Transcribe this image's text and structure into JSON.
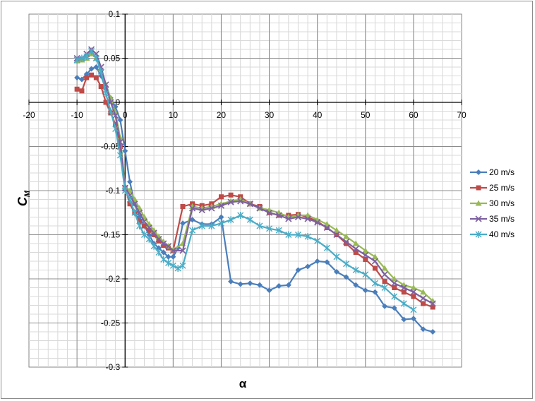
{
  "chart_data": {
    "type": "line",
    "title": "",
    "xlabel": "α",
    "ylabel": "C",
    "ylabel_sub": "M",
    "xlim": [
      -20,
      70
    ],
    "ylim": [
      -0.3,
      0.1
    ],
    "x_major_step": 10,
    "y_major_step": 0.05,
    "x_minor_step": 2,
    "y_minor_step": 0.01,
    "x_tick_labels": [
      "-20",
      "-10",
      "0",
      "10",
      "20",
      "30",
      "40",
      "50",
      "60",
      "70"
    ],
    "y_tick_labels": [
      "-0.3",
      "-0.25",
      "-0.2",
      "-0.15",
      "-0.1",
      "-0.05",
      "0",
      "0.05",
      "0.1"
    ],
    "grid": true,
    "legend_position": "right",
    "series": [
      {
        "name": "20 m/s",
        "color": "#4a7ebb",
        "marker": "diamond",
        "x": [
          -10,
          -9,
          -8,
          -7,
          -6,
          -5,
          -4,
          -3,
          -2,
          -1,
          0,
          1,
          2,
          3,
          4,
          5,
          6,
          7,
          8,
          9,
          10,
          11,
          12,
          14,
          16,
          18,
          20,
          22,
          24,
          26,
          28,
          30,
          32,
          34,
          36,
          38,
          40,
          42,
          44,
          46,
          48,
          50,
          52,
          54,
          56,
          58,
          60,
          62,
          64
        ],
        "y": [
          0.028,
          0.026,
          0.032,
          0.038,
          0.04,
          0.03,
          0.015,
          0.005,
          -0.005,
          -0.02,
          -0.055,
          -0.09,
          -0.115,
          -0.13,
          -0.14,
          -0.15,
          -0.16,
          -0.165,
          -0.17,
          -0.175,
          -0.175,
          -0.165,
          -0.137,
          -0.133,
          -0.138,
          -0.138,
          -0.13,
          -0.203,
          -0.206,
          -0.205,
          -0.207,
          -0.213,
          -0.208,
          -0.207,
          -0.19,
          -0.186,
          -0.18,
          -0.181,
          -0.192,
          -0.198,
          -0.207,
          -0.213,
          -0.215,
          -0.231,
          -0.233,
          -0.246,
          -0.245,
          -0.257,
          -0.26
        ]
      },
      {
        "name": "25 m/s",
        "color": "#be4b48",
        "marker": "square",
        "x": [
          -10,
          -9,
          -8,
          -7,
          -6,
          -5,
          -4,
          -3,
          -2,
          -1,
          0,
          1,
          2,
          3,
          4,
          5,
          6,
          7,
          8,
          9,
          10,
          12,
          14,
          16,
          18,
          20,
          22,
          24,
          26,
          28,
          30,
          32,
          34,
          36,
          38,
          40,
          42,
          44,
          46,
          48,
          50,
          52,
          54,
          56,
          58,
          60,
          62,
          64
        ],
        "y": [
          0.015,
          0.013,
          0.028,
          0.031,
          0.028,
          0.018,
          0.0,
          -0.012,
          -0.025,
          -0.05,
          -0.097,
          -0.115,
          -0.125,
          -0.135,
          -0.14,
          -0.145,
          -0.15,
          -0.157,
          -0.162,
          -0.165,
          -0.168,
          -0.118,
          -0.115,
          -0.117,
          -0.115,
          -0.107,
          -0.105,
          -0.107,
          -0.115,
          -0.118,
          -0.125,
          -0.128,
          -0.128,
          -0.127,
          -0.13,
          -0.135,
          -0.142,
          -0.15,
          -0.16,
          -0.17,
          -0.178,
          -0.188,
          -0.203,
          -0.21,
          -0.215,
          -0.22,
          -0.228,
          -0.232
        ]
      },
      {
        "name": "30 m/s",
        "color": "#98b954",
        "marker": "triangle",
        "x": [
          -10,
          -9,
          -8,
          -7,
          -6,
          -5,
          -4,
          -3,
          -2,
          -1,
          0,
          1,
          2,
          3,
          4,
          5,
          6,
          7,
          8,
          9,
          10,
          12,
          14,
          16,
          18,
          20,
          22,
          24,
          26,
          28,
          30,
          32,
          34,
          36,
          38,
          40,
          42,
          44,
          46,
          48,
          50,
          52,
          54,
          56,
          58,
          60,
          62,
          64
        ],
        "y": [
          0.047,
          0.048,
          0.05,
          0.055,
          0.05,
          0.038,
          0.02,
          0.005,
          -0.012,
          -0.04,
          -0.095,
          -0.1,
          -0.11,
          -0.12,
          -0.13,
          -0.138,
          -0.145,
          -0.152,
          -0.158,
          -0.163,
          -0.167,
          -0.16,
          -0.118,
          -0.12,
          -0.118,
          -0.115,
          -0.112,
          -0.11,
          -0.115,
          -0.12,
          -0.122,
          -0.125,
          -0.13,
          -0.128,
          -0.128,
          -0.133,
          -0.138,
          -0.145,
          -0.152,
          -0.16,
          -0.168,
          -0.175,
          -0.188,
          -0.2,
          -0.207,
          -0.21,
          -0.215,
          -0.225
        ]
      },
      {
        "name": "35 m/s",
        "color": "#7d60a0",
        "marker": "x",
        "x": [
          -10,
          -9,
          -8,
          -7,
          -6,
          -5,
          -4,
          -3,
          -2,
          -1,
          0,
          1,
          2,
          3,
          4,
          5,
          6,
          7,
          8,
          9,
          10,
          12,
          14,
          16,
          18,
          20,
          22,
          24,
          26,
          28,
          30,
          32,
          34,
          36,
          38,
          40,
          42,
          44,
          46,
          48,
          50,
          52,
          54,
          56,
          58,
          60,
          62,
          64
        ],
        "y": [
          0.05,
          0.05,
          0.055,
          0.06,
          0.055,
          0.04,
          0.02,
          0.0,
          -0.015,
          -0.045,
          -0.097,
          -0.105,
          -0.115,
          -0.125,
          -0.135,
          -0.142,
          -0.148,
          -0.155,
          -0.16,
          -0.163,
          -0.168,
          -0.168,
          -0.12,
          -0.122,
          -0.12,
          -0.117,
          -0.113,
          -0.112,
          -0.115,
          -0.12,
          -0.125,
          -0.128,
          -0.132,
          -0.13,
          -0.132,
          -0.136,
          -0.142,
          -0.15,
          -0.158,
          -0.166,
          -0.173,
          -0.18,
          -0.195,
          -0.205,
          -0.21,
          -0.215,
          -0.222,
          -0.228
        ]
      },
      {
        "name": "40 m/s",
        "color": "#4bacc6",
        "marker": "asterisk",
        "x": [
          -10,
          -9,
          -8,
          -7,
          -6,
          -5,
          -4,
          -3,
          -2,
          -1,
          0,
          1,
          2,
          3,
          4,
          5,
          6,
          7,
          8,
          9,
          10,
          11,
          12,
          14,
          16,
          18,
          20,
          22,
          24,
          26,
          28,
          30,
          32,
          34,
          36,
          38,
          40,
          42,
          44,
          46,
          48,
          50,
          52,
          54,
          56,
          58,
          60
        ],
        "y": [
          0.048,
          0.05,
          0.052,
          0.058,
          0.05,
          0.035,
          0.01,
          -0.01,
          -0.03,
          -0.06,
          -0.1,
          -0.11,
          -0.125,
          -0.14,
          -0.15,
          -0.155,
          -0.163,
          -0.17,
          -0.178,
          -0.182,
          -0.185,
          -0.188,
          -0.185,
          -0.145,
          -0.14,
          -0.14,
          -0.137,
          -0.133,
          -0.128,
          -0.133,
          -0.14,
          -0.143,
          -0.145,
          -0.15,
          -0.15,
          -0.152,
          -0.157,
          -0.165,
          -0.175,
          -0.183,
          -0.19,
          -0.195,
          -0.205,
          -0.21,
          -0.22,
          -0.228,
          -0.235
        ]
      }
    ]
  }
}
